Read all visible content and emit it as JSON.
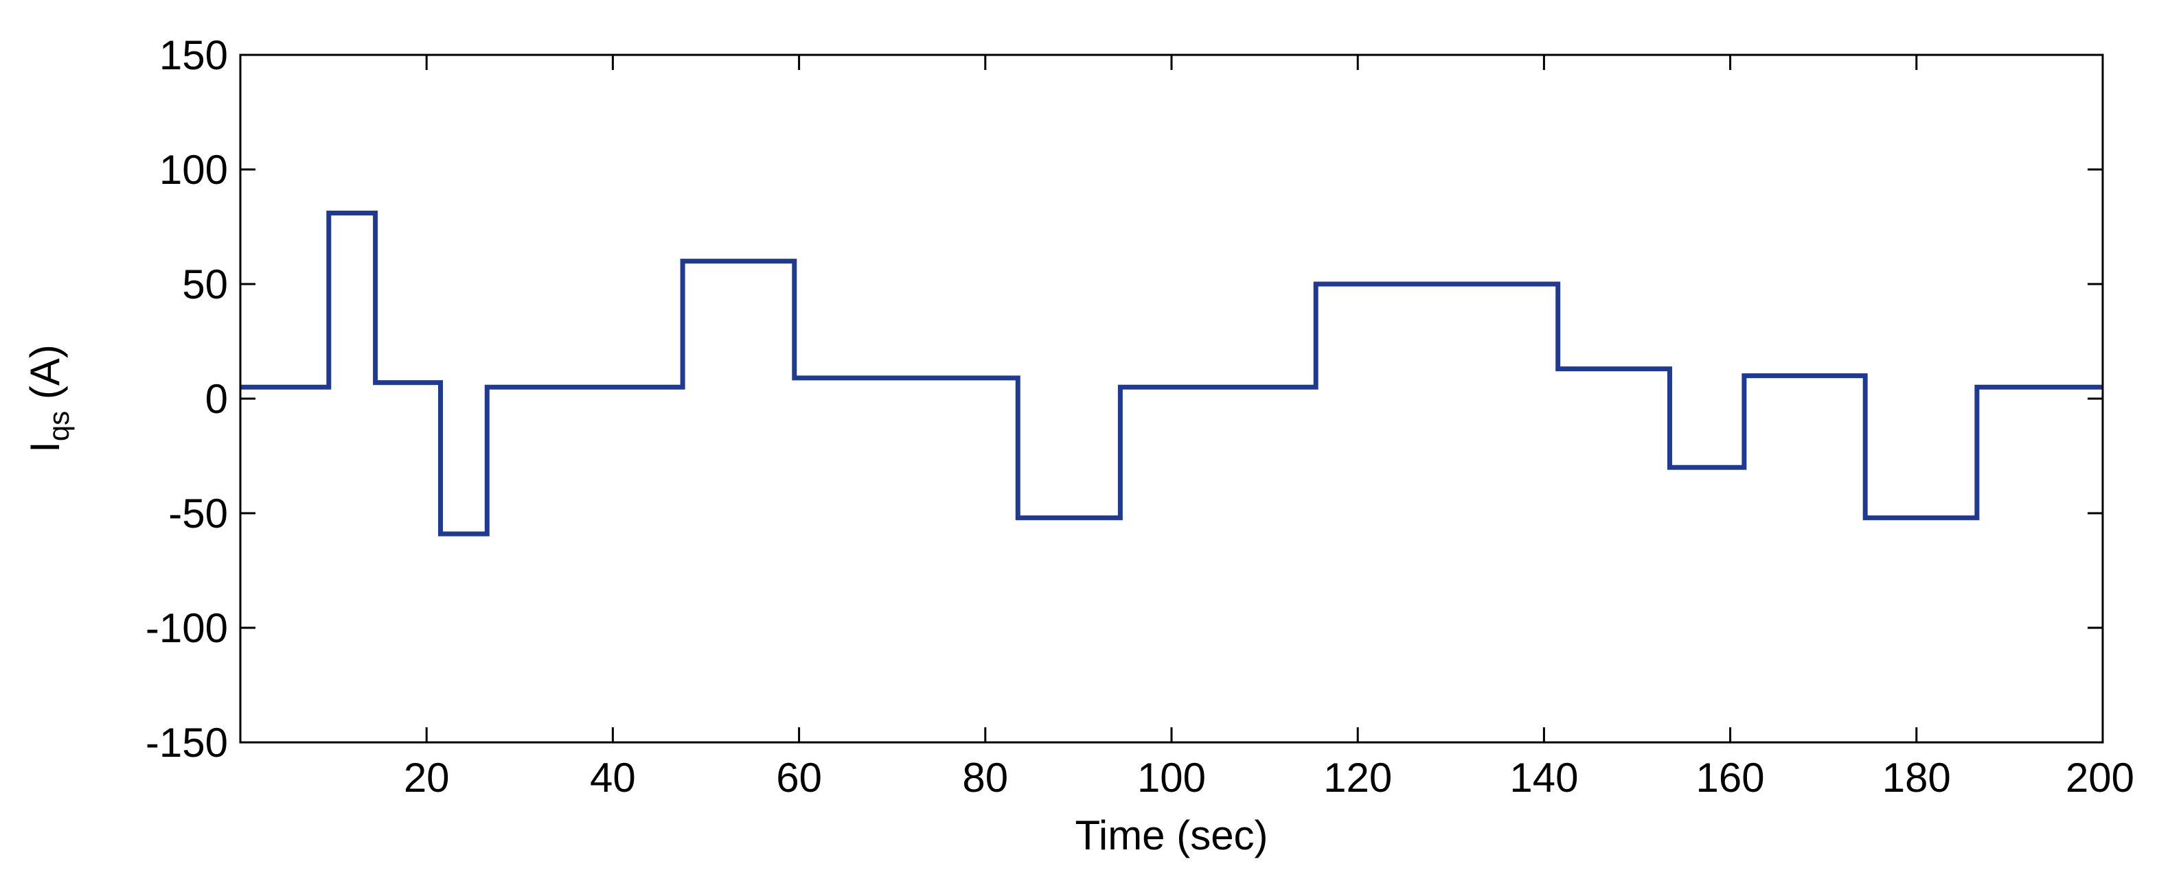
{
  "chart_data": {
    "type": "line",
    "title": "",
    "xlabel": "Time (sec)",
    "ylabel": {
      "main": "I",
      "sub": "qs",
      "suffix": " (A)"
    },
    "xlim": [
      0,
      200
    ],
    "ylim": [
      -150,
      150
    ],
    "x_ticks": [
      20,
      40,
      60,
      80,
      100,
      120,
      140,
      160,
      180,
      200
    ],
    "y_ticks": [
      150,
      100,
      50,
      0,
      -50,
      -100,
      -150
    ],
    "grid": false,
    "legend": "none",
    "colors": {
      "line": "#1f3a93",
      "axes": "#000000",
      "background": "#ffffff"
    },
    "series": [
      {
        "x": [
          0,
          9.5,
          9.5,
          14.5,
          14.5,
          21.5,
          21.5,
          26.5,
          26.5,
          47.5,
          47.5,
          59.5,
          59.5,
          83.5,
          83.5,
          94.5,
          94.5,
          115.5,
          115.5,
          141.5,
          141.5,
          153.5,
          153.5,
          161.5,
          161.5,
          174.5,
          174.5,
          186.5,
          186.5,
          200
        ],
        "y": [
          5,
          5,
          81,
          81,
          7,
          7,
          -59,
          -59,
          5,
          5,
          60,
          60,
          9,
          9,
          -52,
          -52,
          5,
          5,
          50,
          50,
          13,
          13,
          -30,
          -30,
          10,
          10,
          -52,
          -52,
          5,
          5
        ]
      }
    ]
  }
}
